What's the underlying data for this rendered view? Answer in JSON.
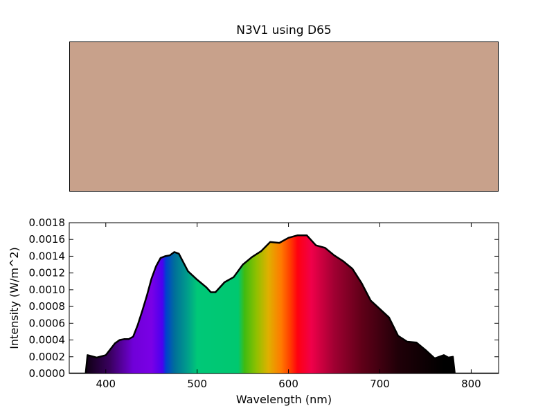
{
  "chart_data": [
    {
      "type": "color_swatch",
      "title": "N3V1 using D65",
      "color": "#c8a18b"
    },
    {
      "type": "area",
      "title": "",
      "xlabel": "Wavelength (nm)",
      "ylabel": "Intensity (W/m^2)",
      "xlim": [
        360,
        830
      ],
      "ylim": [
        0,
        0.0018
      ],
      "xticks": [
        400,
        500,
        600,
        700,
        800
      ],
      "xtick_labels": [
        "400",
        "500",
        "600",
        "700",
        "800"
      ],
      "yticks": [
        0,
        0.0002,
        0.0004,
        0.0006,
        0.0008,
        0.001,
        0.0012,
        0.0014,
        0.0016,
        0.0018
      ],
      "ytick_labels": [
        "0.0000",
        "0.0002",
        "0.0004",
        "0.0006",
        "0.0008",
        "0.0010",
        "0.0012",
        "0.0014",
        "0.0016",
        "0.0018"
      ],
      "fill": "visible-spectrum gradient",
      "line_color": "#000000",
      "x": [
        360,
        378,
        380,
        390,
        400,
        410,
        415,
        420,
        425,
        430,
        435,
        440,
        445,
        450,
        455,
        460,
        465,
        470,
        475,
        480,
        490,
        500,
        510,
        515,
        520,
        530,
        540,
        550,
        560,
        570,
        580,
        590,
        600,
        610,
        620,
        630,
        640,
        650,
        660,
        670,
        680,
        690,
        700,
        710,
        720,
        730,
        740,
        750,
        760,
        770,
        775,
        780,
        782,
        830
      ],
      "y": [
        0,
        0,
        0.00022,
        0.00019,
        0.00022,
        0.00036,
        0.0004,
        0.00041,
        0.00041,
        0.00044,
        0.00058,
        0.00075,
        0.00093,
        0.00113,
        0.00128,
        0.00138,
        0.0014,
        0.00141,
        0.00145,
        0.00143,
        0.00122,
        0.00112,
        0.00103,
        0.00097,
        0.00097,
        0.00109,
        0.00115,
        0.0013,
        0.00139,
        0.00146,
        0.00157,
        0.00156,
        0.00162,
        0.00165,
        0.00165,
        0.00153,
        0.0015,
        0.00141,
        0.00134,
        0.00125,
        0.00108,
        0.00087,
        0.00077,
        0.00067,
        0.00045,
        0.00038,
        0.00037,
        0.00028,
        0.00018,
        0.00022,
        0.00019,
        0.0002,
        0,
        0
      ]
    }
  ]
}
